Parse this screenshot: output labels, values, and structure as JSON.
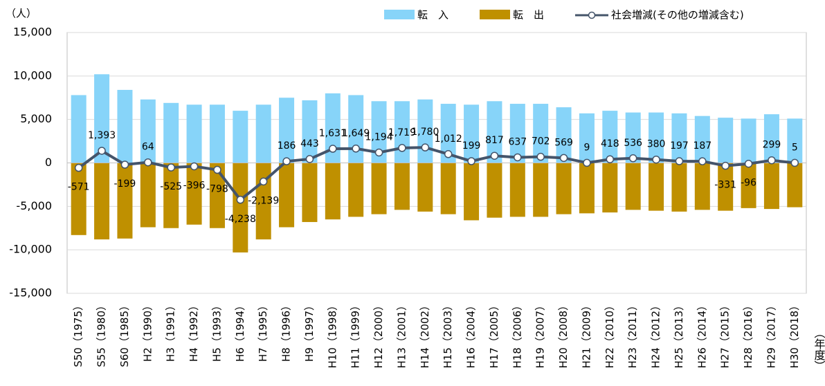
{
  "chart_data": {
    "type": "bar_line",
    "y_label": "（人）",
    "x_label": "（年度）",
    "categories": [
      "S50（1975）",
      "S55（1980）",
      "S60（1985）",
      "H2（1990）",
      "H3（1991）",
      "H4（1992）",
      "H5（1993）",
      "H6（1994）",
      "H7（1995）",
      "H8（1996）",
      "H9（1997）",
      "H10（1998）",
      "H11（1999）",
      "H12（2000）",
      "H13（2001）",
      "H14（2002）",
      "H15（2003）",
      "H16（2004）",
      "H17（2005）",
      "H18（2006）",
      "H19（2007）",
      "H20（2008）",
      "H21（2009）",
      "H22（2010）",
      "H23（2011）",
      "H24（2012）",
      "H25（2013）",
      "H26（2014）",
      "H27（2015）",
      "H28（2016）",
      "H29（2017）",
      "H30（2018）"
    ],
    "series": [
      {
        "name": "転　入",
        "kind": "bar",
        "color": "#87d4f9",
        "values": [
          7800,
          10200,
          8400,
          7300,
          6900,
          6700,
          6700,
          6000,
          6700,
          7500,
          7200,
          8000,
          7800,
          7100,
          7100,
          7300,
          6800,
          6700,
          7100,
          6800,
          6800,
          6400,
          5700,
          6000,
          5800,
          5800,
          5700,
          5400,
          5200,
          5100,
          5600,
          5100
        ]
      },
      {
        "name": "転　出",
        "kind": "bar",
        "color": "#bf9000",
        "values": [
          -8300,
          -8800,
          -8700,
          -7400,
          -7500,
          -7100,
          -7500,
          -10300,
          -8800,
          -7400,
          -6800,
          -6500,
          -6200,
          -5900,
          -5400,
          -5600,
          -5900,
          -6600,
          -6300,
          -6200,
          -6200,
          -5900,
          -5800,
          -5700,
          -5400,
          -5500,
          -5600,
          -5400,
          -5500,
          -5200,
          -5300,
          -5100
        ]
      },
      {
        "name": "社会増減(その他の増減含む)",
        "kind": "line",
        "color": "#44546a",
        "values": [
          -571,
          1393,
          -199,
          64,
          -525,
          -396,
          -798,
          -4238,
          -2139,
          186,
          443,
          1631,
          1649,
          1194,
          1719,
          1780,
          1012,
          199,
          817,
          637,
          702,
          569,
          9,
          418,
          536,
          380,
          197,
          187,
          -331,
          -96,
          299,
          5
        ],
        "value_labels": [
          "-571",
          "1,393",
          "-199",
          "64",
          "-525",
          "-396",
          "-798",
          "-4,238",
          "-2,139",
          "186",
          "443",
          "1,631",
          "1,649",
          "1,194",
          "1,719",
          "1,780",
          "1,012",
          "199",
          "817",
          "637",
          "702",
          "569",
          "9",
          "418",
          "536",
          "380",
          "197",
          "187",
          "-331",
          "-96",
          "299",
          "5"
        ]
      }
    ],
    "ylim": [
      -15000,
      15000
    ],
    "yticks": [
      {
        "value": -15000,
        "label": "-15,000"
      },
      {
        "value": -10000,
        "label": "-10,000"
      },
      {
        "value": -5000,
        "label": "-5,000"
      },
      0,
      {
        "value": 5000,
        "label": "5,000"
      },
      {
        "value": 10000,
        "label": "10,000"
      },
      {
        "value": 15000,
        "label": "15,000"
      }
    ],
    "grid": true,
    "legend": "top-right"
  }
}
